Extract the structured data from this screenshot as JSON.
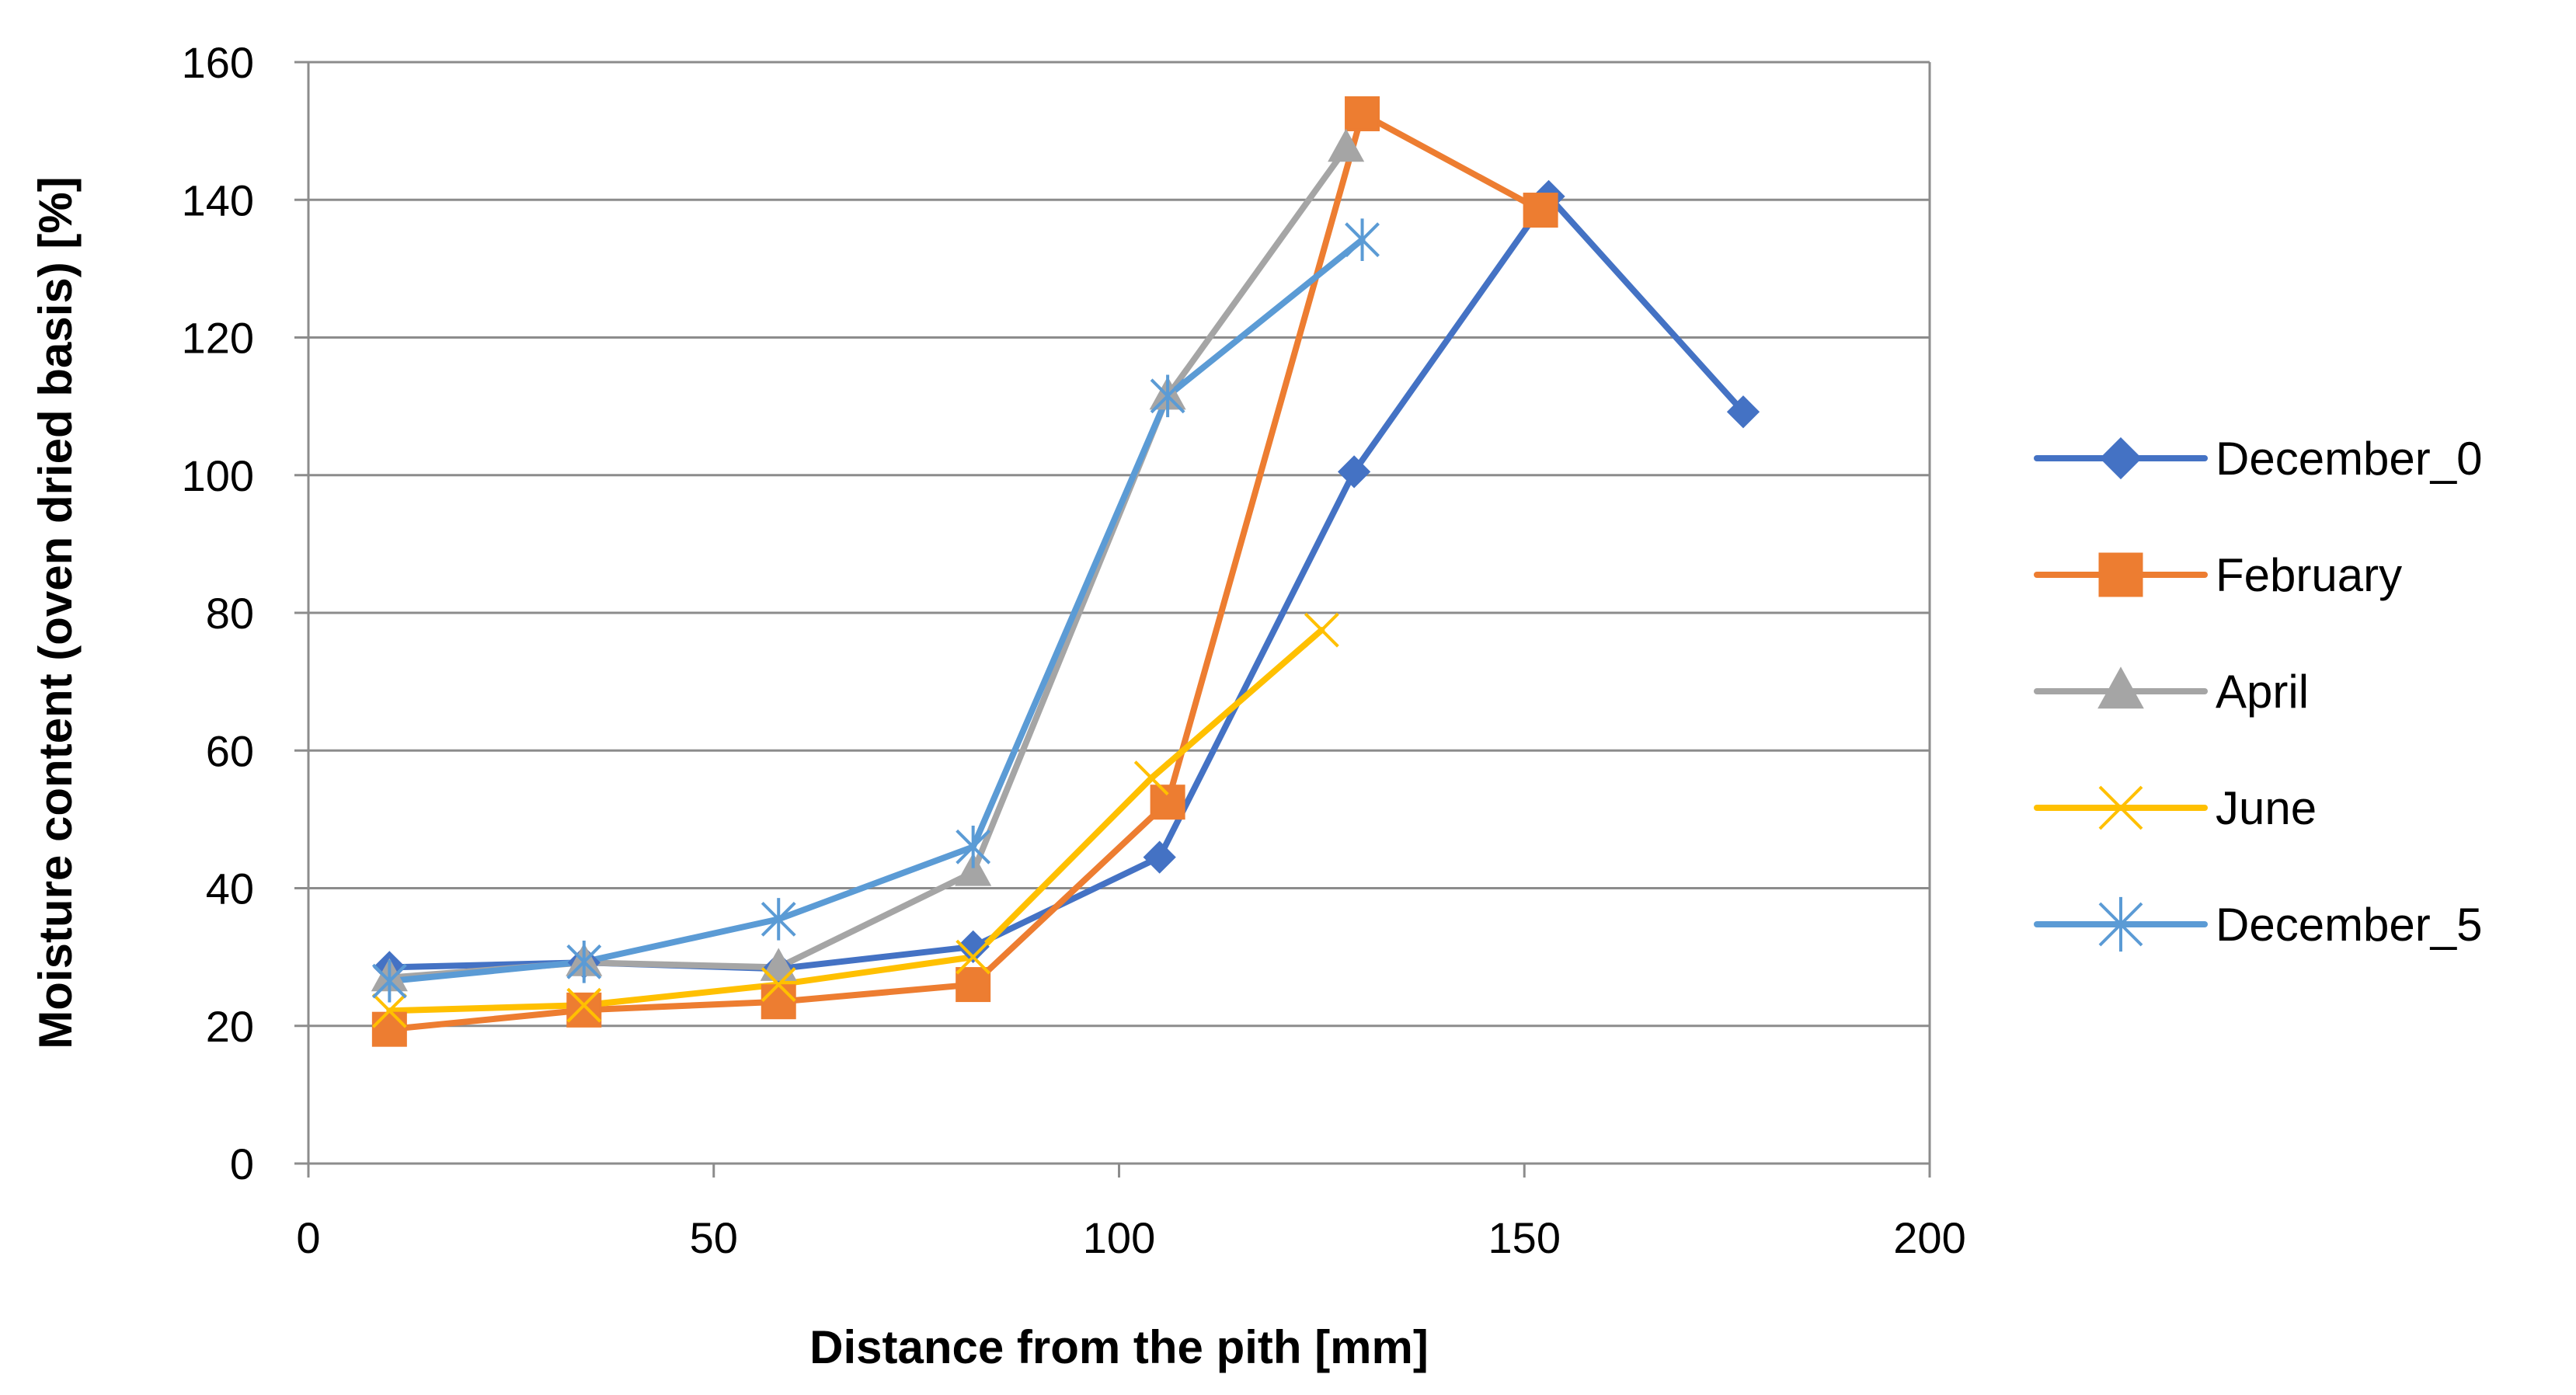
{
  "chart_data": {
    "type": "line",
    "title": "",
    "xlabel": "Distance from the pith [mm]",
    "ylabel": "Moisture content (oven dried basis) [%]",
    "xlim": [
      0,
      200
    ],
    "ylim": [
      0,
      160
    ],
    "xticks": [
      0,
      50,
      100,
      150,
      200
    ],
    "yticks": [
      0,
      20,
      40,
      60,
      80,
      100,
      120,
      140,
      160
    ],
    "grid": "horizontal",
    "legend_position": "right",
    "series": [
      {
        "name": "December_0",
        "color": "#4472C4",
        "marker": "diamond",
        "x": [
          10,
          34,
          58,
          82,
          105,
          129,
          153,
          177
        ],
        "y": [
          28.5,
          29.2,
          28.3,
          31.5,
          44.5,
          100.5,
          140.5,
          109.2
        ]
      },
      {
        "name": "February",
        "color": "#ED7D31",
        "marker": "square",
        "x": [
          10,
          34,
          58,
          82,
          106,
          130,
          152
        ],
        "y": [
          19.5,
          22.3,
          23.5,
          26.0,
          52.5,
          152.5,
          138.5
        ]
      },
      {
        "name": "April",
        "color": "#A5A5A5",
        "marker": "triangle",
        "x": [
          10,
          34,
          58,
          82,
          106,
          128
        ],
        "y": [
          27.0,
          29.2,
          28.5,
          42.3,
          111.5,
          147.5
        ]
      },
      {
        "name": "June",
        "color": "#FFC000",
        "marker": "x",
        "x": [
          10,
          34,
          58,
          82,
          104,
          125
        ],
        "y": [
          22.2,
          23.0,
          26.0,
          30.0,
          56.0,
          77.5
        ]
      },
      {
        "name": "December_5",
        "color": "#5B9BD5",
        "marker": "star",
        "x": [
          10,
          34,
          58,
          82,
          106,
          130
        ],
        "y": [
          26.5,
          29.3,
          35.5,
          46.0,
          111.5,
          134.2
        ]
      }
    ]
  }
}
